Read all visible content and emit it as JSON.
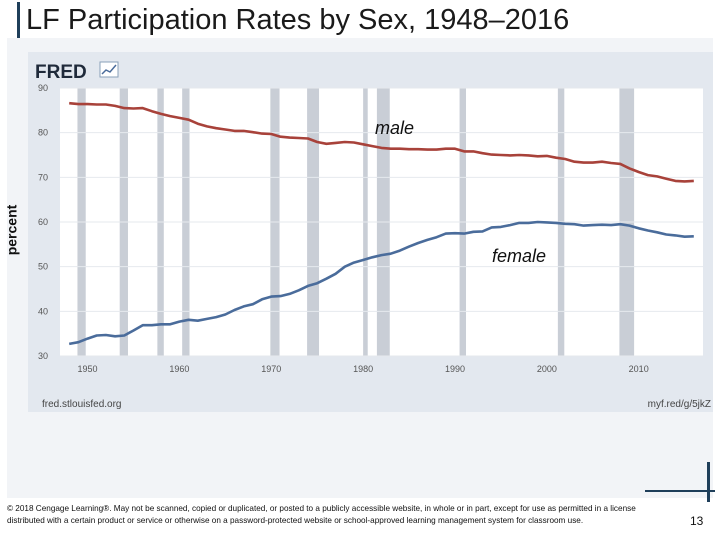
{
  "slide": {
    "title": "LF Participation Rates by Sex, 1948–2016",
    "footer": "© 2018 Cengage Learning®. May not be scanned, copied or duplicated, or posted to a publicly accessible website, in whole or in part, except for use as permitted in a license distributed with a certain product or service or otherwise on a password-protected website or school-approved learning management system for classroom use.",
    "page_number": "13"
  },
  "fred": {
    "logo_text": "FRED",
    "source": "fred.stlouisfed.org",
    "short_url": "myf.red/g/5jkZ"
  },
  "colors": {
    "male": "#a8423a",
    "female": "#4a6c9b",
    "recession": "#c9ced6",
    "grid": "#ffffff",
    "plot_bg": "#ffffff",
    "panel_bg": "#e3e8ef",
    "accent": "#1f3f5a"
  },
  "chart_data": {
    "type": "line",
    "title": "LF Participation Rates by Sex, 1948–2016",
    "xlabel": "",
    "ylabel": "percent",
    "xlim": [
      1947,
      2017
    ],
    "ylim": [
      30,
      90
    ],
    "x_ticks": [
      1950,
      1960,
      1970,
      1980,
      1990,
      2000,
      2010
    ],
    "y_ticks": [
      30,
      40,
      50,
      60,
      70,
      80,
      90
    ],
    "recessions": [
      [
        1948.9,
        1949.8
      ],
      [
        1953.5,
        1954.4
      ],
      [
        1957.6,
        1958.3
      ],
      [
        1960.3,
        1961.1
      ],
      [
        1969.9,
        1970.9
      ],
      [
        1973.9,
        1975.2
      ],
      [
        1980.0,
        1980.5
      ],
      [
        1981.5,
        1982.9
      ],
      [
        1990.5,
        1991.2
      ],
      [
        2001.2,
        2001.9
      ],
      [
        2007.9,
        2009.5
      ]
    ],
    "series": [
      {
        "name": "male",
        "label": "male",
        "x": [
          1948,
          1949,
          1950,
          1951,
          1952,
          1953,
          1954,
          1955,
          1956,
          1957,
          1958,
          1959,
          1960,
          1961,
          1962,
          1963,
          1964,
          1965,
          1966,
          1967,
          1968,
          1969,
          1970,
          1971,
          1972,
          1973,
          1974,
          1975,
          1976,
          1977,
          1978,
          1979,
          1980,
          1981,
          1982,
          1983,
          1984,
          1985,
          1986,
          1987,
          1988,
          1989,
          1990,
          1991,
          1992,
          1993,
          1994,
          1995,
          1996,
          1997,
          1998,
          1999,
          2000,
          2001,
          2002,
          2003,
          2004,
          2005,
          2006,
          2007,
          2008,
          2009,
          2010,
          2011,
          2012,
          2013,
          2014,
          2015,
          2016
        ],
        "values": [
          86.6,
          86.4,
          86.4,
          86.3,
          86.3,
          86.0,
          85.5,
          85.4,
          85.5,
          84.8,
          84.2,
          83.7,
          83.3,
          82.9,
          82.0,
          81.4,
          81.0,
          80.7,
          80.4,
          80.4,
          80.1,
          79.8,
          79.7,
          79.1,
          78.9,
          78.8,
          78.7,
          77.9,
          77.5,
          77.7,
          77.9,
          77.8,
          77.4,
          77.0,
          76.6,
          76.4,
          76.4,
          76.3,
          76.3,
          76.2,
          76.2,
          76.4,
          76.4,
          75.8,
          75.8,
          75.4,
          75.1,
          75.0,
          74.9,
          75.0,
          74.9,
          74.7,
          74.8,
          74.4,
          74.1,
          73.5,
          73.3,
          73.3,
          73.5,
          73.2,
          73.0,
          72.0,
          71.2,
          70.5,
          70.2,
          69.7,
          69.2,
          69.1,
          69.2
        ]
      },
      {
        "name": "female",
        "label": "female",
        "x": [
          1948,
          1949,
          1950,
          1951,
          1952,
          1953,
          1954,
          1955,
          1956,
          1957,
          1958,
          1959,
          1960,
          1961,
          1962,
          1963,
          1964,
          1965,
          1966,
          1967,
          1968,
          1969,
          1970,
          1971,
          1972,
          1973,
          1974,
          1975,
          1976,
          1977,
          1978,
          1979,
          1980,
          1981,
          1982,
          1983,
          1984,
          1985,
          1986,
          1987,
          1988,
          1989,
          1990,
          1991,
          1992,
          1993,
          1994,
          1995,
          1996,
          1997,
          1998,
          1999,
          2000,
          2001,
          2002,
          2003,
          2004,
          2005,
          2006,
          2007,
          2008,
          2009,
          2010,
          2011,
          2012,
          2013,
          2014,
          2015,
          2016
        ],
        "values": [
          32.7,
          33.1,
          33.9,
          34.6,
          34.7,
          34.4,
          34.6,
          35.7,
          36.9,
          36.9,
          37.1,
          37.1,
          37.7,
          38.1,
          37.9,
          38.3,
          38.7,
          39.3,
          40.3,
          41.1,
          41.6,
          42.7,
          43.3,
          43.4,
          43.9,
          44.7,
          45.7,
          46.3,
          47.3,
          48.4,
          50.0,
          50.9,
          51.5,
          52.1,
          52.6,
          52.9,
          53.6,
          54.5,
          55.3,
          56.0,
          56.6,
          57.4,
          57.5,
          57.4,
          57.8,
          57.9,
          58.8,
          58.9,
          59.3,
          59.8,
          59.8,
          60.0,
          59.9,
          59.8,
          59.6,
          59.5,
          59.2,
          59.3,
          59.4,
          59.3,
          59.5,
          59.2,
          58.6,
          58.1,
          57.7,
          57.2,
          57.0,
          56.7,
          56.8
        ]
      }
    ]
  }
}
